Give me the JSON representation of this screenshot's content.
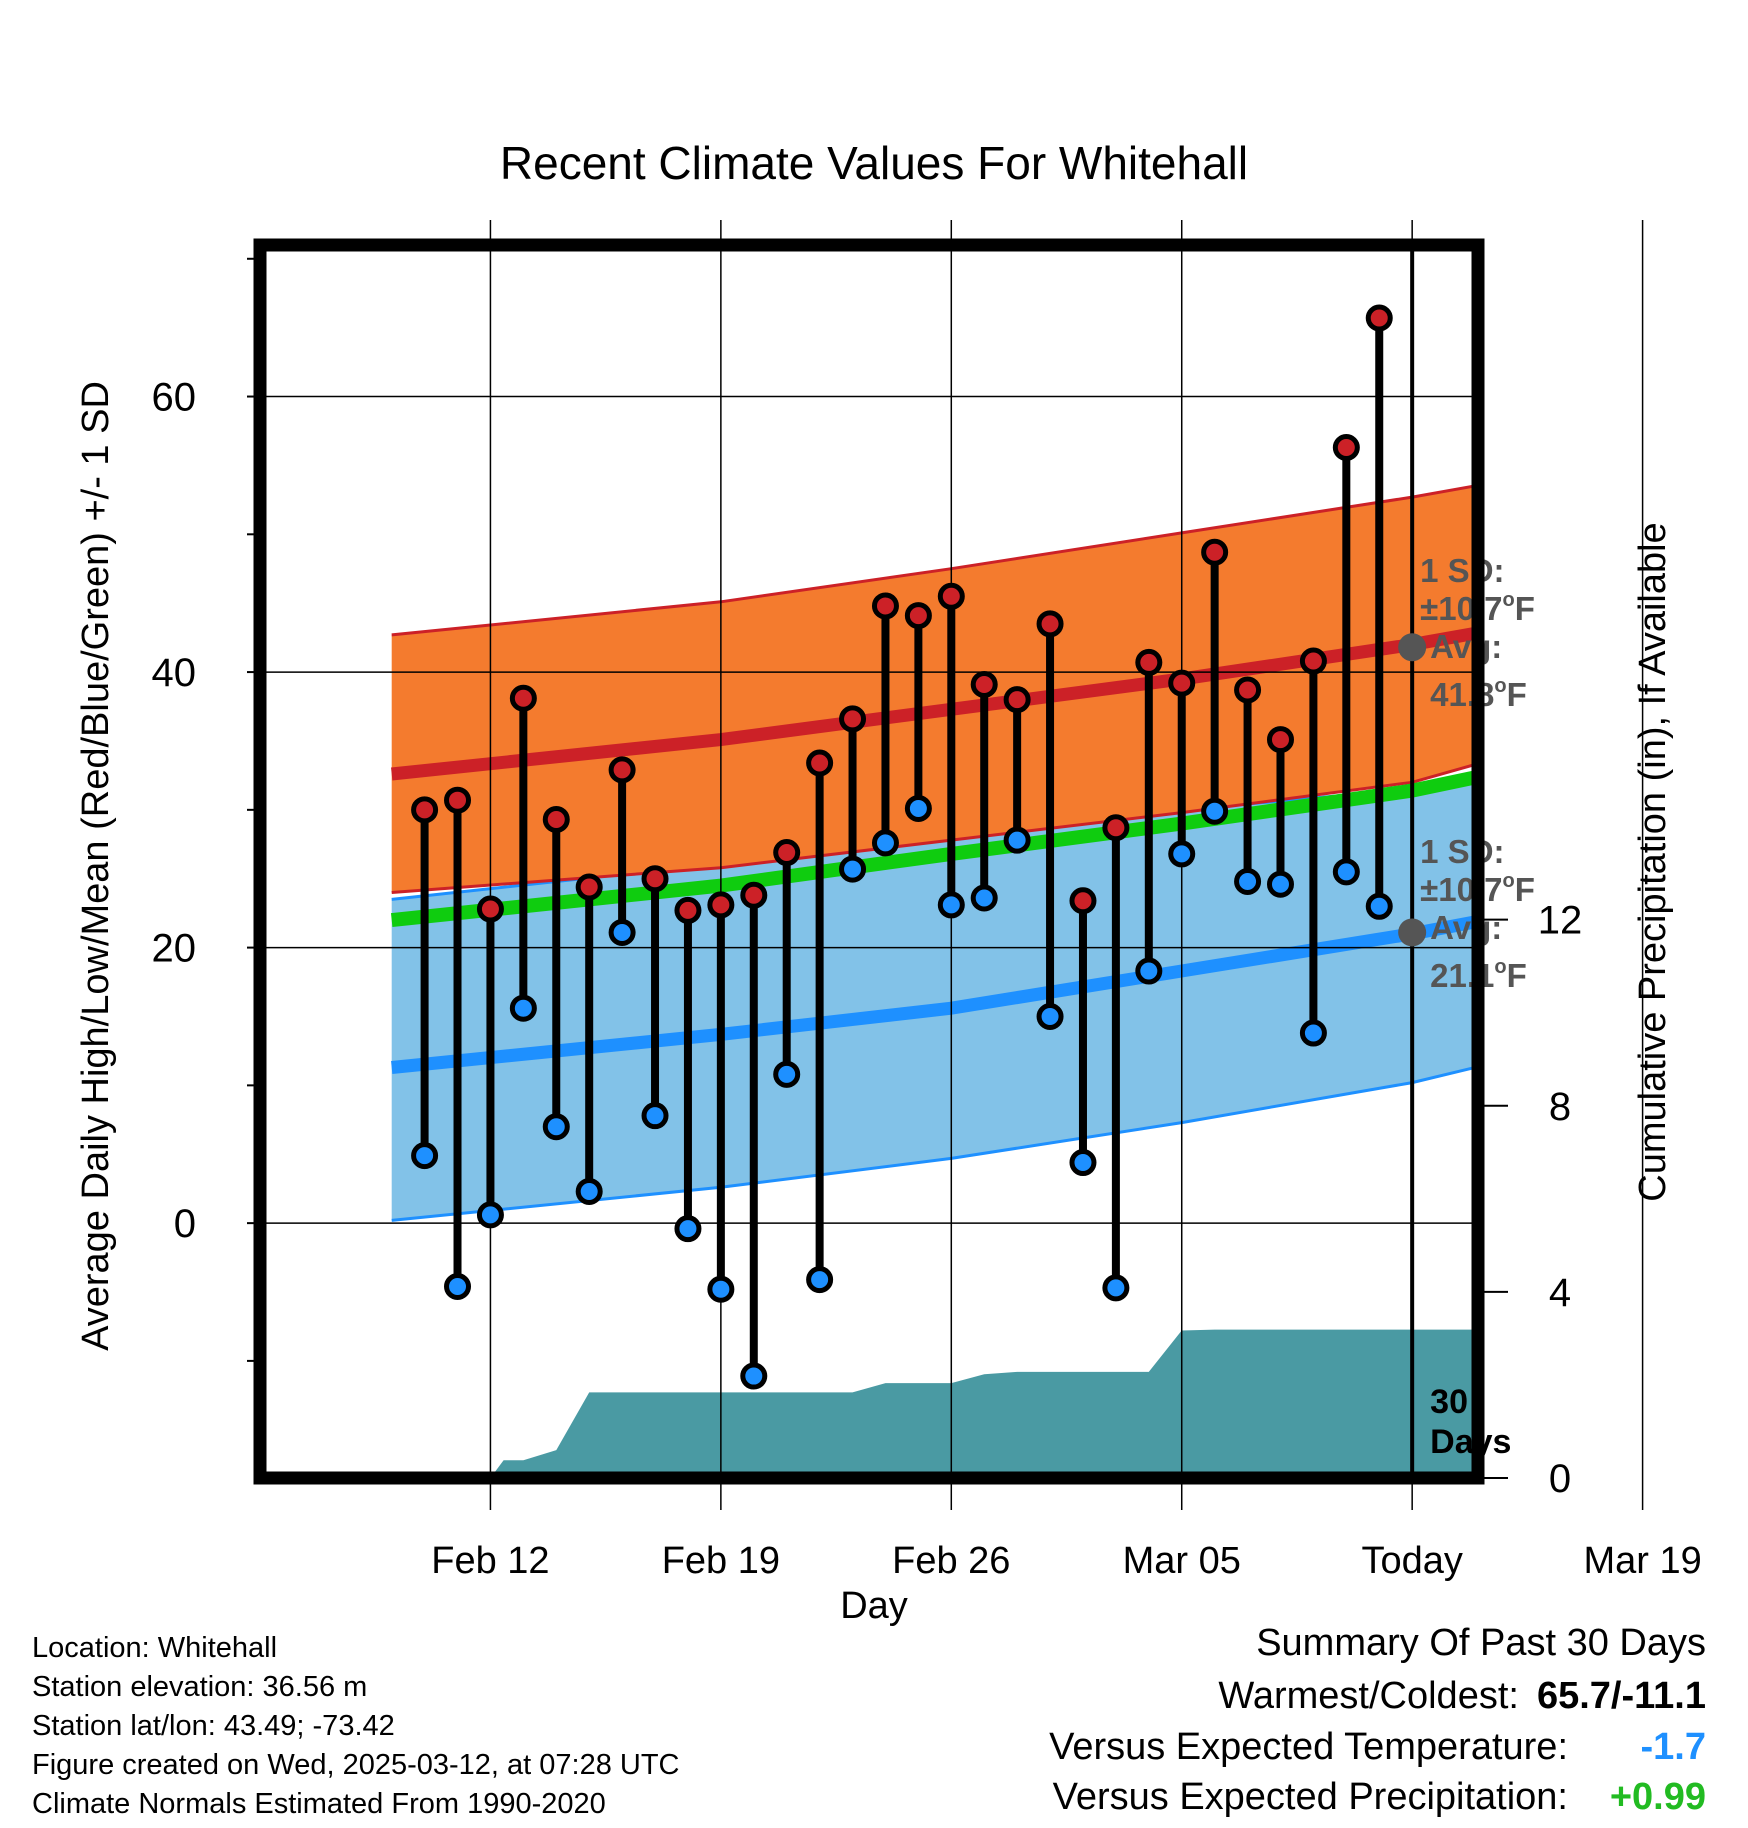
{
  "chart_data": {
    "type": "line",
    "title": "Recent Climate Values For Whitehall",
    "xlabel": "Day",
    "ylabel": "Average Daily High/Low/Mean (Red/Blue/Green) +/- 1 SD",
    "y2label": "Cumulative Precipitation (in), If Available",
    "xlim_days": [
      -35,
      2
    ],
    "ylim": [
      -18.5,
      71
    ],
    "y2lim": [
      0,
      26.5
    ],
    "grid": true,
    "x_tick_labels": [
      {
        "day": -28,
        "label": "Feb 12"
      },
      {
        "day": -21,
        "label": "Feb 19"
      },
      {
        "day": -14,
        "label": "Feb 26"
      },
      {
        "day": -7,
        "label": "Mar 05"
      },
      {
        "day": 0,
        "label": "Today"
      },
      {
        "day": 7,
        "label": "Mar 19"
      }
    ],
    "y_ticks": [
      0,
      20,
      40,
      60
    ],
    "y2_ticks": [
      0,
      4,
      8,
      12
    ],
    "normals": {
      "high_mean": [
        [
          -31,
          32.6
        ],
        [
          -21,
          35.1
        ],
        [
          -14,
          37.3
        ],
        [
          -7,
          39.5
        ],
        [
          0,
          42.0
        ],
        [
          4,
          43.7
        ],
        [
          9,
          45.9
        ]
      ],
      "high_sd_upper": [
        [
          -31,
          42.7
        ],
        [
          -21,
          45.1
        ],
        [
          -14,
          47.5
        ],
        [
          -7,
          50.1
        ],
        [
          0,
          52.7
        ],
        [
          4,
          54.4
        ],
        [
          9,
          56.3
        ]
      ],
      "high_sd_lower": [
        [
          -31,
          24.0
        ],
        [
          -21,
          25.8
        ],
        [
          -14,
          27.8
        ],
        [
          -7,
          29.8
        ],
        [
          0,
          32.0
        ],
        [
          4,
          34.7
        ],
        [
          9,
          38.1
        ]
      ],
      "low_mean": [
        [
          -31,
          11.3
        ],
        [
          -21,
          13.7
        ],
        [
          -14,
          15.6
        ],
        [
          -7,
          18.3
        ],
        [
          0,
          21.0
        ],
        [
          4,
          22.8
        ],
        [
          9,
          25.0
        ]
      ],
      "low_sd_upper": [
        [
          -31,
          23.5
        ],
        [
          -21,
          26.1
        ],
        [
          -14,
          27.9
        ],
        [
          -7,
          30.0
        ],
        [
          0,
          31.5
        ],
        [
          4,
          32.8
        ],
        [
          9,
          34.0
        ]
      ],
      "low_sd_lower": [
        [
          -31,
          0.2
        ],
        [
          -21,
          2.6
        ],
        [
          -14,
          4.7
        ],
        [
          -7,
          7.3
        ],
        [
          0,
          10.2
        ],
        [
          4,
          12.5
        ],
        [
          9,
          15.1
        ]
      ],
      "mean": [
        [
          -31,
          22.0
        ],
        [
          -21,
          24.5
        ],
        [
          -14,
          26.8
        ],
        [
          -7,
          29.0
        ],
        [
          0,
          31.4
        ],
        [
          4,
          33.4
        ],
        [
          9,
          35.3
        ]
      ],
      "colors": {
        "high_band": "#f47b2e",
        "low_band": "#82c2e8",
        "high_line": "#cc2127",
        "low_line": "#1e90ff",
        "mean_line": "#0fcc0f",
        "precip": "#4a9aa3"
      }
    },
    "daily_highs": [
      [
        -30,
        30.0
      ],
      [
        -29,
        30.7
      ],
      [
        -28,
        22.8
      ],
      [
        -27,
        38.1
      ],
      [
        -26,
        29.3
      ],
      [
        -25,
        24.4
      ],
      [
        -24,
        32.9
      ],
      [
        -23,
        25.0
      ],
      [
        -22,
        22.7
      ],
      [
        -21,
        23.1
      ],
      [
        -20,
        23.8
      ],
      [
        -19,
        26.9
      ],
      [
        -18,
        33.4
      ],
      [
        -17,
        36.6
      ],
      [
        -16,
        44.8
      ],
      [
        -15,
        44.1
      ],
      [
        -14,
        45.5
      ],
      [
        -13,
        39.1
      ],
      [
        -12,
        38.0
      ],
      [
        -11,
        43.5
      ],
      [
        -10,
        23.4
      ],
      [
        -9,
        28.7
      ],
      [
        -8,
        40.7
      ],
      [
        -7,
        39.2
      ],
      [
        -6,
        48.7
      ],
      [
        -5,
        38.7
      ],
      [
        -4,
        35.1
      ],
      [
        -3,
        40.8
      ],
      [
        -2,
        56.3
      ],
      [
        -1,
        65.7
      ]
    ],
    "daily_lows": [
      [
        -30,
        4.9
      ],
      [
        -29,
        -4.6
      ],
      [
        -28,
        0.6
      ],
      [
        -27,
        15.6
      ],
      [
        -26,
        7.0
      ],
      [
        -25,
        2.3
      ],
      [
        -24,
        21.1
      ],
      [
        -23,
        7.8
      ],
      [
        -22,
        -0.4
      ],
      [
        -21,
        -4.8
      ],
      [
        -20,
        -11.1
      ],
      [
        -19,
        10.8
      ],
      [
        -18,
        -4.1
      ],
      [
        -17,
        25.7
      ],
      [
        -16,
        27.6
      ],
      [
        -15,
        30.1
      ],
      [
        -14,
        23.1
      ],
      [
        -13,
        23.6
      ],
      [
        -12,
        27.8
      ],
      [
        -11,
        15.0
      ],
      [
        -10,
        4.4
      ],
      [
        -9,
        -4.7
      ],
      [
        -8,
        18.3
      ],
      [
        -7,
        26.8
      ],
      [
        -6,
        29.9
      ],
      [
        -5,
        24.8
      ],
      [
        -4,
        24.6
      ],
      [
        -3,
        13.8
      ],
      [
        -2,
        25.5
      ],
      [
        -1,
        23.0
      ]
    ],
    "cumulative_precip": [
      [
        -28,
        0.0
      ],
      [
        -27.6,
        0.38
      ],
      [
        -27,
        0.38
      ],
      [
        -26,
        0.6
      ],
      [
        -25,
        1.84
      ],
      [
        -17,
        1.84
      ],
      [
        -16,
        2.04
      ],
      [
        -14,
        2.04
      ],
      [
        -13,
        2.23
      ],
      [
        -12,
        2.28
      ],
      [
        -8,
        2.28
      ],
      [
        -7,
        3.17
      ],
      [
        -6,
        3.19
      ],
      [
        2,
        3.19
      ]
    ],
    "annotations": {
      "high_sd_label": "1 SD:",
      "high_sd_value": "±10.7",
      "high_avg_label": "Avg:",
      "high_avg_value": "41.8",
      "low_sd_label": "1 SD:",
      "low_sd_value": "±10.7",
      "low_avg_label": "Avg:",
      "low_avg_value": "21.1",
      "degree_sup": "o",
      "unit_F": "F",
      "days_count": "30",
      "days_word": "Days",
      "high_avg_point": 41.8,
      "low_avg_point": 21.1
    }
  },
  "footer": {
    "location": "Location: Whitehall",
    "elevation": "Station elevation: 36.56 m",
    "latlon": "Station lat/lon: 43.49; -73.42",
    "created": "Figure created on Wed, 2025-03-12, at 07:28 UTC",
    "normals": "Climate Normals Estimated From 1990-2020"
  },
  "summary": {
    "title": "Summary Of Past 30 Days",
    "warm_cold_label": "Warmest/Coldest:",
    "warm_cold_value": "65.7/-11.1",
    "temp_label": "Versus Expected Temperature:",
    "temp_value": "-1.7",
    "temp_color": "#1e90ff",
    "precip_label": "Versus Expected Precipitation:",
    "precip_value": "+0.99",
    "precip_color": "#22bb22"
  }
}
